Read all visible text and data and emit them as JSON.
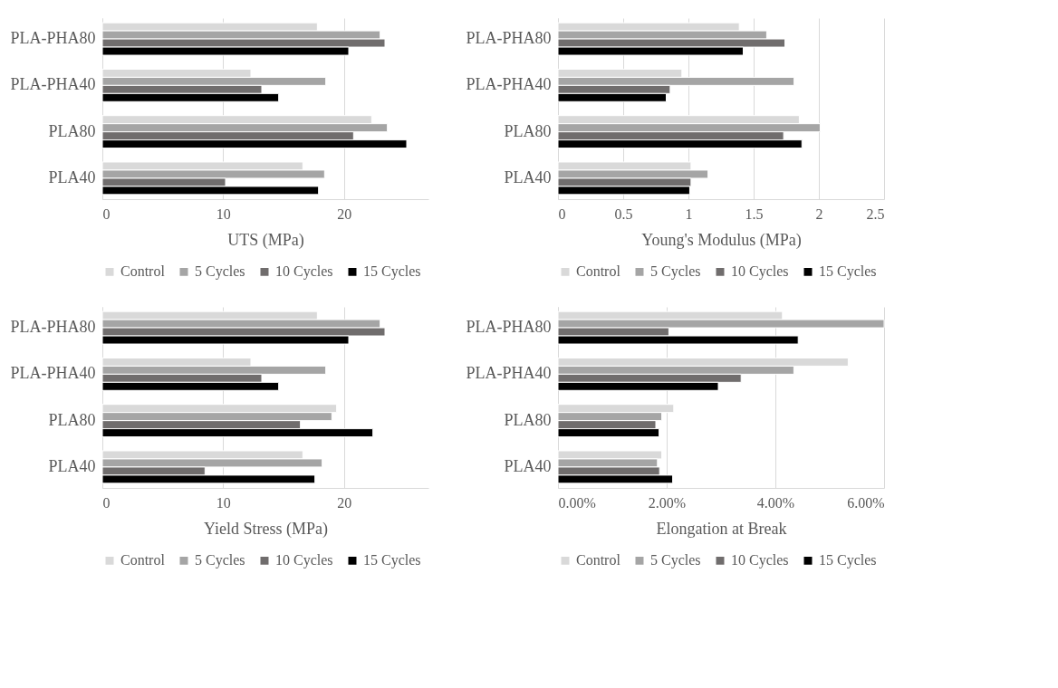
{
  "chart_data": [
    {
      "type": "bar",
      "orientation": "horizontal",
      "xlabel": "UTS (MPa)",
      "categories": [
        "PLA-PHA80",
        "PLA-PHA40",
        "PLA80",
        "PLA40"
      ],
      "xlim": [
        0,
        27
      ],
      "xticks": [
        0,
        10,
        20
      ],
      "grid": "x",
      "legend": "bottom",
      "series": [
        {
          "name": "Control",
          "color": "#d9d9d9",
          "values": [
            17.8,
            12.3,
            22.3,
            16.6
          ]
        },
        {
          "name": "5 Cycles",
          "color": "#a5a5a5",
          "values": [
            23.0,
            18.5,
            23.6,
            18.4
          ]
        },
        {
          "name": "10 Cycles",
          "color": "#706d6d",
          "values": [
            23.4,
            13.2,
            20.8,
            10.2
          ]
        },
        {
          "name": "15 Cycles",
          "color": "#000000",
          "values": [
            20.4,
            14.6,
            25.2,
            17.9
          ]
        }
      ]
    },
    {
      "type": "bar",
      "orientation": "horizontal",
      "xlabel": "Young's Modulus (MPa)",
      "categories": [
        "PLA-PHA80",
        "PLA-PHA40",
        "PLA80",
        "PLA40"
      ],
      "xlim": [
        0,
        2.5
      ],
      "xticks": [
        0,
        0.5,
        1,
        1.5,
        2,
        2.5
      ],
      "grid": "x",
      "legend": "bottom",
      "series": [
        {
          "name": "Control",
          "color": "#d9d9d9",
          "values": [
            1.39,
            0.95,
            1.85,
            1.02
          ]
        },
        {
          "name": "5 Cycles",
          "color": "#a5a5a5",
          "values": [
            1.6,
            1.81,
            2.01,
            1.15
          ]
        },
        {
          "name": "10 Cycles",
          "color": "#706d6d",
          "values": [
            1.74,
            0.86,
            1.73,
            1.02
          ]
        },
        {
          "name": "15 Cycles",
          "color": "#000000",
          "values": [
            1.42,
            0.83,
            1.87,
            1.01
          ]
        }
      ]
    },
    {
      "type": "bar",
      "orientation": "horizontal",
      "xlabel": "Yield Stress (MPa)",
      "categories": [
        "PLA-PHA80",
        "PLA-PHA40",
        "PLA80",
        "PLA40"
      ],
      "xlim": [
        0,
        27
      ],
      "xticks": [
        0,
        10,
        20
      ],
      "grid": "x",
      "legend": "bottom",
      "series": [
        {
          "name": "Control",
          "color": "#d9d9d9",
          "values": [
            17.8,
            12.3,
            19.4,
            16.6
          ]
        },
        {
          "name": "5 Cycles",
          "color": "#a5a5a5",
          "values": [
            23.0,
            18.5,
            19.0,
            18.2
          ]
        },
        {
          "name": "10 Cycles",
          "color": "#706d6d",
          "values": [
            23.4,
            13.2,
            16.4,
            8.5
          ]
        },
        {
          "name": "15 Cycles",
          "color": "#000000",
          "values": [
            20.4,
            14.6,
            22.4,
            17.6
          ]
        }
      ]
    },
    {
      "type": "bar",
      "orientation": "horizontal",
      "xlabel": "Elongation at Break",
      "categories": [
        "PLA-PHA80",
        "PLA-PHA40",
        "PLA80",
        "PLA40"
      ],
      "xlim": [
        0,
        6
      ],
      "xticks": [
        {
          "value": 0,
          "label": "0.00%"
        },
        {
          "value": 2,
          "label": "2.00%"
        },
        {
          "value": 4,
          "label": "4.00%"
        },
        {
          "value": 6,
          "label": "6.00%"
        }
      ],
      "grid": "x",
      "legend": "bottom",
      "series": [
        {
          "name": "Control",
          "color": "#d9d9d9",
          "values": [
            4.13,
            5.34,
            2.13,
            1.91
          ]
        },
        {
          "name": "5 Cycles",
          "color": "#a5a5a5",
          "values": [
            6.0,
            4.34,
            1.91,
            1.83
          ]
        },
        {
          "name": "10 Cycles",
          "color": "#706d6d",
          "values": [
            2.04,
            3.37,
            1.8,
            1.87
          ]
        },
        {
          "name": "15 Cycles",
          "color": "#000000",
          "values": [
            4.42,
            2.95,
            1.86,
            2.11
          ]
        }
      ]
    }
  ]
}
